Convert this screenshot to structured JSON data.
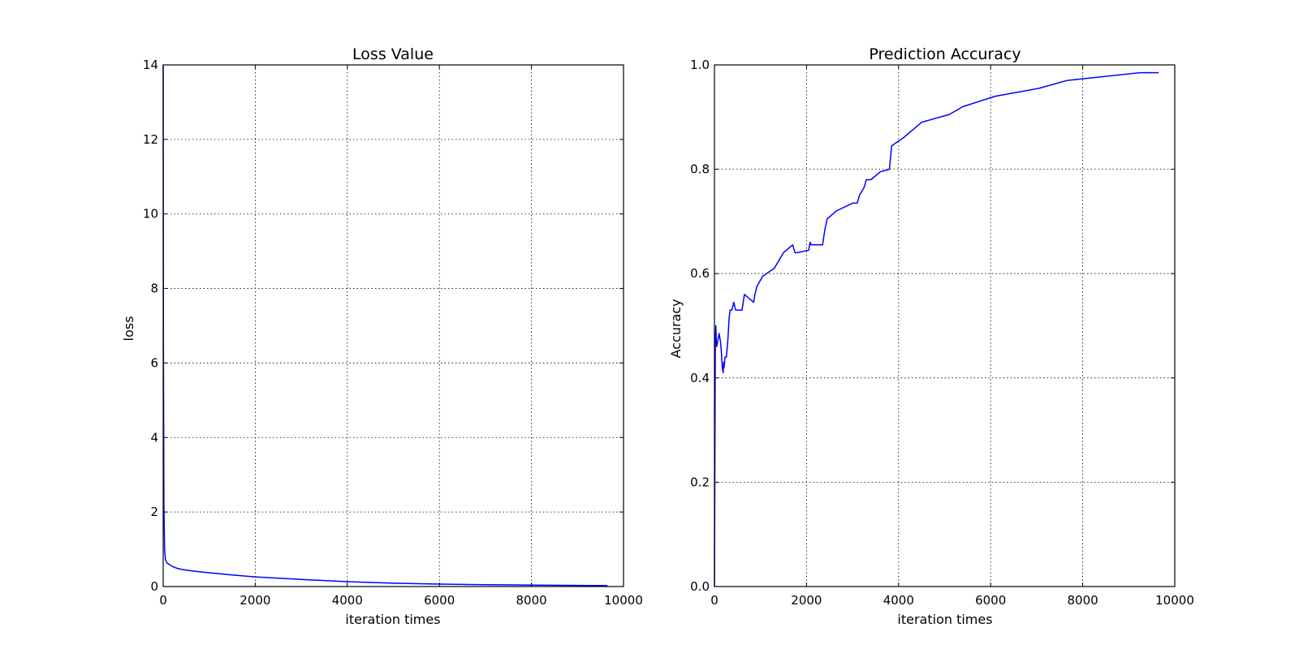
{
  "chart_data": [
    {
      "type": "line",
      "title": "Loss Value",
      "xlabel": "iteration times",
      "ylabel": "loss",
      "xlim": [
        0,
        10000
      ],
      "ylim": [
        0,
        14
      ],
      "xticks": [
        0,
        2000,
        4000,
        6000,
        8000,
        10000
      ],
      "yticks": [
        0,
        2,
        4,
        6,
        8,
        10,
        12,
        14
      ],
      "xtick_labels": [
        "0",
        "2000",
        "4000",
        "6000",
        "8000",
        "10000"
      ],
      "ytick_labels": [
        "0",
        "2",
        "4",
        "6",
        "8",
        "10",
        "12",
        "14"
      ],
      "grid": true,
      "color": "#0000ff",
      "series": [
        {
          "x": [
            0,
            5,
            15,
            30,
            50,
            80,
            120,
            200,
            300,
            400,
            500,
            700,
            1000,
            1500,
            2000,
            3000,
            4000,
            5000,
            6000,
            7000,
            8000,
            9000,
            9650
          ],
          "y": [
            14.0,
            6.5,
            2.2,
            1.0,
            0.72,
            0.64,
            0.6,
            0.54,
            0.49,
            0.46,
            0.44,
            0.41,
            0.37,
            0.31,
            0.26,
            0.19,
            0.13,
            0.09,
            0.065,
            0.05,
            0.04,
            0.03,
            0.025
          ]
        }
      ]
    },
    {
      "type": "line",
      "title": "Prediction Accuracy",
      "xlabel": "iteration times",
      "ylabel": "Accuracy",
      "xlim": [
        0,
        10000
      ],
      "ylim": [
        0.0,
        1.0
      ],
      "xticks": [
        0,
        2000,
        4000,
        6000,
        8000,
        10000
      ],
      "yticks": [
        0.0,
        0.2,
        0.4,
        0.6,
        0.8,
        1.0
      ],
      "xtick_labels": [
        "0",
        "2000",
        "4000",
        "6000",
        "8000",
        "10000"
      ],
      "ytick_labels": [
        "0.0",
        "0.2",
        "0.4",
        "0.6",
        "0.8",
        "1.0"
      ],
      "grid": true,
      "color": "#0000ff",
      "series": [
        {
          "x": [
            0,
            20,
            30,
            40,
            50,
            70,
            100,
            130,
            150,
            170,
            190,
            200,
            210,
            230,
            260,
            290,
            320,
            340,
            360,
            380,
            420,
            460,
            490,
            520,
            600,
            650,
            850,
            880,
            920,
            1050,
            1300,
            1500,
            1700,
            1750,
            1800,
            2050,
            2080,
            2100,
            2350,
            2400,
            2450,
            2650,
            3000,
            3100,
            3150,
            3250,
            3300,
            3400,
            3600,
            3800,
            3850,
            4100,
            4300,
            4500,
            5100,
            5400,
            6100,
            7050,
            7650,
            9250,
            9650
          ],
          "y": [
            0.0,
            0.48,
            0.5,
            0.47,
            0.46,
            0.47,
            0.485,
            0.47,
            0.45,
            0.42,
            0.41,
            0.43,
            0.42,
            0.44,
            0.44,
            0.47,
            0.515,
            0.53,
            0.53,
            0.53,
            0.545,
            0.53,
            0.53,
            0.53,
            0.53,
            0.56,
            0.545,
            0.56,
            0.575,
            0.595,
            0.61,
            0.64,
            0.655,
            0.64,
            0.64,
            0.645,
            0.66,
            0.655,
            0.655,
            0.685,
            0.705,
            0.72,
            0.735,
            0.735,
            0.75,
            0.765,
            0.78,
            0.78,
            0.795,
            0.8,
            0.845,
            0.86,
            0.875,
            0.89,
            0.905,
            0.92,
            0.94,
            0.955,
            0.97,
            0.985,
            0.985
          ]
        }
      ]
    }
  ]
}
